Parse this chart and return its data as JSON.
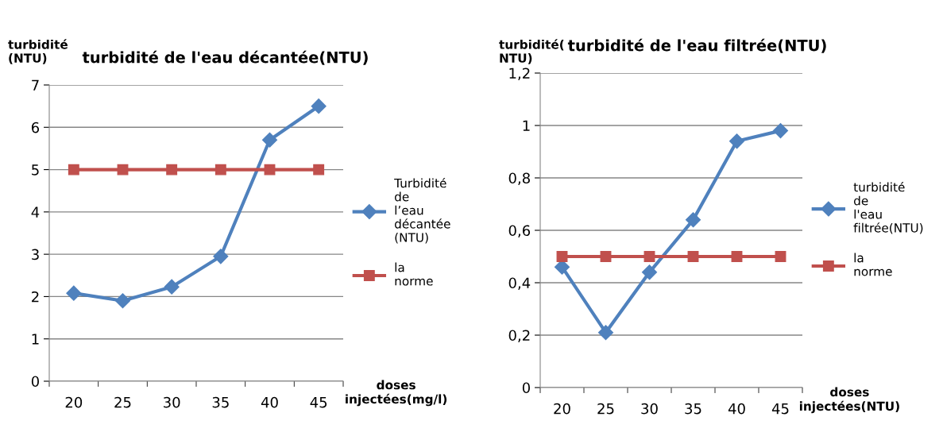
{
  "chart_data": [
    {
      "type": "line",
      "title": "turbidité de l'eau décantée(NTU)",
      "ylabel": "turbidité (NTU)",
      "xlabel": "doses injectées(mg/l)",
      "categories": [
        "20",
        "25",
        "30",
        "35",
        "40",
        "45"
      ],
      "series": [
        {
          "name": "Turbidité de l’eau décantée (NTU)",
          "color": "#4f81bd",
          "marker": "diamond",
          "values": [
            2.08,
            1.9,
            2.23,
            2.95,
            5.7,
            6.5
          ]
        },
        {
          "name": "la norme",
          "color": "#c0504d",
          "marker": "square",
          "values": [
            5,
            5,
            5,
            5,
            5,
            5
          ]
        }
      ],
      "ylim": [
        0,
        7
      ],
      "yticks": [
        0,
        1,
        2,
        3,
        4,
        5,
        6,
        7
      ],
      "grid": "y",
      "legend": "right"
    },
    {
      "type": "line",
      "title": "turbidité de l'eau filtrée(NTU)",
      "ylabel": "turbidité( NTU)",
      "xlabel": "doses injectées(NTU)",
      "categories": [
        "20",
        "25",
        "30",
        "35",
        "40",
        "45"
      ],
      "series": [
        {
          "name": "turbidité de l'eau filtrée(NTU)",
          "color": "#4f81bd",
          "marker": "diamond",
          "values": [
            0.46,
            0.21,
            0.44,
            0.64,
            0.94,
            0.98
          ]
        },
        {
          "name": "la norme",
          "color": "#c0504d",
          "marker": "square",
          "values": [
            0.5,
            0.5,
            0.5,
            0.5,
            0.5,
            0.5
          ]
        }
      ],
      "ylim": [
        0,
        1.2
      ],
      "yticks": [
        0,
        {
          "value": 0.2,
          "label": "0,2"
        },
        {
          "value": 0.4,
          "label": "0,4"
        },
        {
          "value": 0.6,
          "label": "0,6"
        },
        {
          "value": 0.8,
          "label": "0,8"
        },
        1,
        {
          "value": 1.2,
          "label": "1,2"
        }
      ],
      "grid": "y",
      "legend": "right"
    }
  ]
}
